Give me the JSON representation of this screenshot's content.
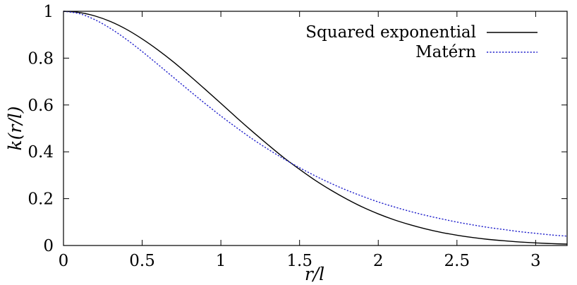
{
  "chart_data": {
    "type": "line",
    "title": "",
    "xlabel": "r/l",
    "ylabel": "k(r/l)",
    "xlim": [
      0,
      3.2
    ],
    "ylim": [
      0,
      1
    ],
    "x_ticks": [
      0,
      0.5,
      1,
      1.5,
      2,
      2.5,
      3
    ],
    "x_tick_labels": [
      "0",
      "0.5",
      "1",
      "1.5",
      "2",
      "2.5",
      "3"
    ],
    "y_ticks": [
      0,
      0.2,
      0.4,
      0.6,
      0.8,
      1
    ],
    "y_tick_labels": [
      "0",
      "0.2",
      "0.4",
      "0.6",
      "0.8",
      "1"
    ],
    "grid": false,
    "legend_position": "top-right",
    "x": [
      0,
      0.1,
      0.2,
      0.3,
      0.4,
      0.5,
      0.6,
      0.7,
      0.8,
      0.9,
      1.0,
      1.1,
      1.2,
      1.3,
      1.4,
      1.5,
      1.6,
      1.7,
      1.8,
      1.9,
      2.0,
      2.1,
      2.2,
      2.3,
      2.4,
      2.5,
      2.6,
      2.7,
      2.8,
      2.9,
      3.0,
      3.1,
      3.2
    ],
    "series": [
      {
        "name": "Squared exponential",
        "color": "#000000",
        "dash": "solid",
        "values": [
          1.0,
          0.995,
          0.98,
          0.956,
          0.923,
          0.882,
          0.835,
          0.783,
          0.726,
          0.667,
          0.607,
          0.546,
          0.487,
          0.43,
          0.375,
          0.325,
          0.278,
          0.236,
          0.198,
          0.164,
          0.135,
          0.11,
          0.089,
          0.071,
          0.056,
          0.044,
          0.034,
          0.026,
          0.02,
          0.015,
          0.011,
          0.008,
          0.006
        ]
      },
      {
        "name": "Matérn",
        "color": "#2222cc",
        "dash": "dotted",
        "values": [
          1.0,
          0.99,
          0.964,
          0.926,
          0.88,
          0.828,
          0.773,
          0.717,
          0.661,
          0.606,
          0.553,
          0.503,
          0.455,
          0.411,
          0.37,
          0.332,
          0.297,
          0.265,
          0.236,
          0.21,
          0.186,
          0.165,
          0.146,
          0.129,
          0.114,
          0.1,
          0.088,
          0.077,
          0.068,
          0.059,
          0.052,
          0.045,
          0.04
        ]
      }
    ]
  }
}
